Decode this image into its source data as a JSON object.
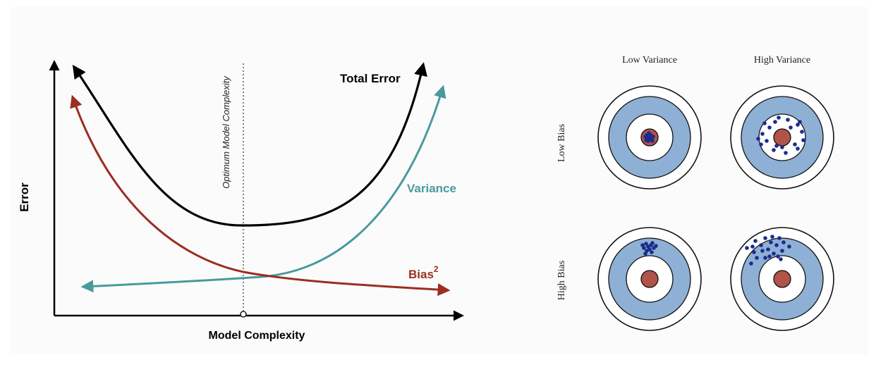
{
  "tradeoff": {
    "y_axis_label": "Error",
    "x_axis_label": "Model Complexity",
    "optimum_label": "Optimum Model Complexity",
    "total_error_label": "Total Error",
    "variance_label": "Variance",
    "bias_label": "Bias",
    "bias_exponent": "2"
  },
  "targets": {
    "columns": [
      "Low Variance",
      "High Variance"
    ],
    "rows": [
      "Low Bias",
      "High Bias"
    ]
  },
  "colors": {
    "total_error": "#000000",
    "variance": "#4a9a9c",
    "bias": "#9b2e22",
    "target_ring": "#8fb0d5",
    "bullseye": "#b0534a",
    "points": "#1a2d8c"
  }
}
